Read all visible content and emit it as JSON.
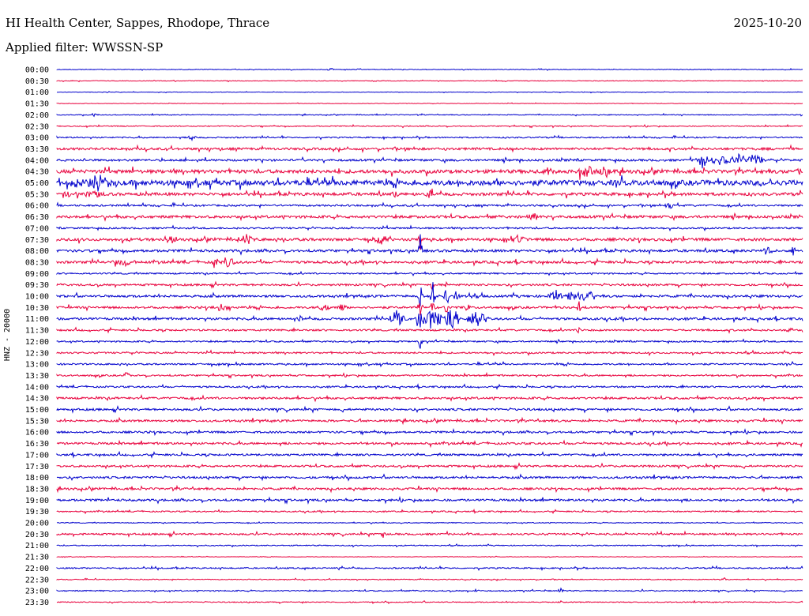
{
  "header": {
    "station": "HI Health Center, Sappes, Rhodope, Thrace",
    "date": "2025-10-20",
    "filter": "Applied filter: WWSSN-SP"
  },
  "chart_data": {
    "type": "line",
    "title": "HI Health Center, Sappes, Rhodope, Thrace",
    "date": "2025-10-20",
    "filter": "WWSSN-SP",
    "ylabel": "HNZ - 20000",
    "line_colors": [
      "#0000cc",
      "#e8003c"
    ],
    "row_labels": [
      "00:00",
      "00:30",
      "01:00",
      "01:30",
      "02:00",
      "02:30",
      "03:00",
      "03:30",
      "04:00",
      "04:30",
      "05:00",
      "05:30",
      "06:00",
      "06:30",
      "07:00",
      "07:30",
      "08:00",
      "08:30",
      "09:00",
      "09:30",
      "10:00",
      "10:30",
      "11:00",
      "11:30",
      "12:00",
      "12:30",
      "13:00",
      "13:30",
      "14:00",
      "14:30",
      "15:00",
      "15:30",
      "16:00",
      "16:30",
      "17:00",
      "17:30",
      "18:00",
      "18:30",
      "19:00",
      "19:30",
      "20:00",
      "20:30",
      "21:00",
      "21:30",
      "22:00",
      "22:30",
      "23:00",
      "23:30"
    ],
    "noise_level": [
      0.4,
      0.4,
      0.3,
      0.3,
      0.5,
      0.6,
      0.8,
      1.4,
      1.3,
      2.2,
      3.2,
      1.8,
      1.1,
      1.6,
      1.0,
      1.7,
      1.5,
      1.5,
      0.9,
      1.2,
      1.4,
      1.3,
      1.4,
      1.1,
      0.9,
      1.0,
      1.0,
      1.0,
      1.0,
      1.3,
      1.3,
      1.3,
      1.2,
      1.3,
      1.2,
      1.2,
      1.3,
      1.3,
      1.3,
      0.8,
      0.5,
      1.1,
      0.6,
      0.3,
      0.8,
      0.5,
      0.7,
      0.6
    ],
    "events": [
      {
        "row": 0,
        "x": 420,
        "amp": 2,
        "width": 8
      },
      {
        "row": 4,
        "x": 120,
        "amp": 3,
        "width": 6
      },
      {
        "row": 6,
        "x": 243,
        "amp": 6,
        "width": 6
      },
      {
        "row": 8,
        "x": 888,
        "amp": 12,
        "width": 10
      },
      {
        "row": 8,
        "x": 912,
        "amp": 7,
        "width": 18
      },
      {
        "row": 8,
        "x": 935,
        "amp": 7,
        "width": 18
      },
      {
        "row": 8,
        "x": 955,
        "amp": 7,
        "width": 18
      },
      {
        "row": 9,
        "x": 695,
        "amp": 5,
        "width": 10
      },
      {
        "row": 9,
        "x": 742,
        "amp": 8,
        "width": 18
      },
      {
        "row": 9,
        "x": 765,
        "amp": 10,
        "width": 12
      },
      {
        "row": 9,
        "x": 1010,
        "amp": 5,
        "width": 14
      },
      {
        "row": 10,
        "x": 75,
        "amp": 5,
        "width": 8
      },
      {
        "row": 10,
        "x": 95,
        "amp": 5,
        "width": 8
      },
      {
        "row": 10,
        "x": 123,
        "amp": 10,
        "width": 26
      },
      {
        "row": 11,
        "x": 88,
        "amp": 4,
        "width": 12
      },
      {
        "row": 11,
        "x": 120,
        "amp": 6,
        "width": 18
      },
      {
        "row": 11,
        "x": 500,
        "amp": 4,
        "width": 10
      },
      {
        "row": 11,
        "x": 543,
        "amp": 6,
        "width": 10
      },
      {
        "row": 12,
        "x": 848,
        "amp": 5,
        "width": 8
      },
      {
        "row": 13,
        "x": 673,
        "amp": 6,
        "width": 14
      },
      {
        "row": 15,
        "x": 213,
        "amp": 6,
        "width": 12
      },
      {
        "row": 15,
        "x": 312,
        "amp": 6,
        "width": 14
      },
      {
        "row": 15,
        "x": 482,
        "amp": 6,
        "width": 12
      },
      {
        "row": 15,
        "x": 532,
        "amp": 15,
        "width": 3
      },
      {
        "row": 15,
        "x": 657,
        "amp": 5,
        "width": 14
      },
      {
        "row": 16,
        "x": 532,
        "amp": 30,
        "width": 3
      },
      {
        "row": 16,
        "x": 972,
        "amp": 6,
        "width": 8
      },
      {
        "row": 16,
        "x": 1002,
        "amp": 8,
        "width": 6
      },
      {
        "row": 17,
        "x": 160,
        "amp": 5,
        "width": 20
      },
      {
        "row": 17,
        "x": 272,
        "amp": 8,
        "width": 6
      },
      {
        "row": 17,
        "x": 290,
        "amp": 6,
        "width": 12
      },
      {
        "row": 19,
        "x": 548,
        "amp": 12,
        "width": 3
      },
      {
        "row": 19,
        "x": 565,
        "amp": 8,
        "width": 3
      },
      {
        "row": 20,
        "x": 532,
        "amp": 15,
        "width": 4
      },
      {
        "row": 20,
        "x": 548,
        "amp": 18,
        "width": 4
      },
      {
        "row": 20,
        "x": 565,
        "amp": 14,
        "width": 4
      },
      {
        "row": 20,
        "x": 578,
        "amp": 8,
        "width": 6
      },
      {
        "row": 20,
        "x": 595,
        "amp": 6,
        "width": 4
      },
      {
        "row": 20,
        "x": 703,
        "amp": 8,
        "width": 12
      },
      {
        "row": 20,
        "x": 725,
        "amp": 8,
        "width": 12
      },
      {
        "row": 20,
        "x": 745,
        "amp": 8,
        "width": 12
      },
      {
        "row": 21,
        "x": 280,
        "amp": 5,
        "width": 12
      },
      {
        "row": 21,
        "x": 410,
        "amp": 6,
        "width": 10
      },
      {
        "row": 21,
        "x": 432,
        "amp": 6,
        "width": 8
      },
      {
        "row": 21,
        "x": 532,
        "amp": 12,
        "width": 4
      },
      {
        "row": 21,
        "x": 548,
        "amp": 12,
        "width": 4
      },
      {
        "row": 21,
        "x": 565,
        "amp": 14,
        "width": 4
      },
      {
        "row": 21,
        "x": 592,
        "amp": 6,
        "width": 6
      },
      {
        "row": 21,
        "x": 733,
        "amp": 10,
        "width": 3
      },
      {
        "row": 22,
        "x": 503,
        "amp": 12,
        "width": 14
      },
      {
        "row": 22,
        "x": 530,
        "amp": 14,
        "width": 8
      },
      {
        "row": 22,
        "x": 548,
        "amp": 14,
        "width": 16
      },
      {
        "row": 22,
        "x": 572,
        "amp": 12,
        "width": 16
      },
      {
        "row": 22,
        "x": 604,
        "amp": 10,
        "width": 16
      },
      {
        "row": 22,
        "x": 380,
        "amp": 4,
        "width": 6
      },
      {
        "row": 23,
        "x": 733,
        "amp": 6,
        "width": 3
      },
      {
        "row": 23,
        "x": 1000,
        "amp": 5,
        "width": 6
      },
      {
        "row": 24,
        "x": 532,
        "amp": 12,
        "width": 3
      },
      {
        "row": 27,
        "x": 160,
        "amp": 4,
        "width": 6
      },
      {
        "row": 41,
        "x": 485,
        "amp": 4,
        "width": 4
      },
      {
        "row": 45,
        "x": 915,
        "amp": 4,
        "width": 6
      },
      {
        "row": 46,
        "x": 603,
        "amp": 3,
        "width": 6
      },
      {
        "row": 46,
        "x": 710,
        "amp": 3,
        "width": 6
      }
    ]
  }
}
